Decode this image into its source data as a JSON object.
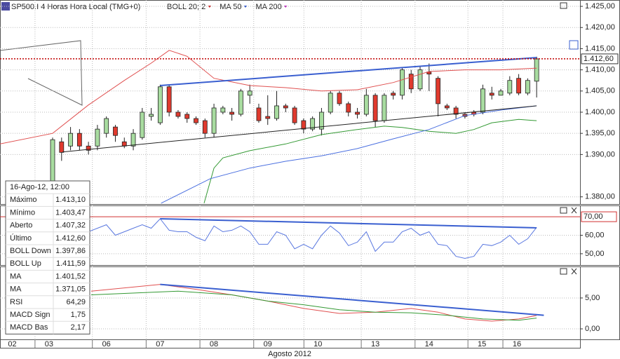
{
  "header": {
    "instrument": "SP500.I 4 Horas Hora Local (TMG+0)",
    "indicators": [
      {
        "label": "BOLL 20; 2",
        "color": "#d03030"
      },
      {
        "label": "MA 50",
        "color": "#3a5fd0"
      },
      {
        "label": "MA 200",
        "color": "#c030c0"
      }
    ]
  },
  "info_box": {
    "title": "16-Ago-12, 12:00",
    "rows": [
      {
        "label": "Máximo",
        "value": "1.413,10",
        "color": "#222222"
      },
      {
        "label": "Mínimo",
        "value": "1.403,47",
        "color": "#222222"
      },
      {
        "label": "Aberto",
        "value": "1.407,32",
        "color": "#222222"
      },
      {
        "label": "Último",
        "value": "1.412,60",
        "color": "#222222"
      },
      {
        "label": "BOLL Down",
        "value": "1.397,86",
        "color": "#2e8b2e"
      },
      {
        "label": "BOLL Up",
        "value": "1.411,59",
        "color": "#d03030"
      },
      {
        "label": "MA",
        "value": "1.401,52",
        "color": "#3a5fd0"
      },
      {
        "label": "MA",
        "value": "1.371,05",
        "color": "#c030c0"
      },
      {
        "label": "RSI",
        "value": "64,29",
        "color": "#222266"
      },
      {
        "label": "MACD Sign",
        "value": "1,75",
        "color": "#2e8b2e"
      },
      {
        "label": "MACD Bas",
        "value": "2,17",
        "color": "#d03030"
      }
    ]
  },
  "chart_data": [
    {
      "type": "candlestick",
      "xlabel": "Agosto 2012",
      "xlim": [
        -5.87,
        58.84
      ],
      "xticks": [
        {
          "value": -4.5,
          "label": "02"
        },
        {
          "value": -0.4,
          "label": "03"
        },
        {
          "value": 6,
          "label": "06"
        },
        {
          "value": 12,
          "label": "07"
        },
        {
          "value": 18,
          "label": "08"
        },
        {
          "value": 24,
          "label": "09"
        },
        {
          "value": 29.6,
          "label": "10"
        },
        {
          "value": 36,
          "label": "13"
        },
        {
          "value": 42,
          "label": "14"
        },
        {
          "value": 47.9,
          "label": "15"
        },
        {
          "value": 51.8,
          "label": "16"
        }
      ],
      "ylim": [
        1378.3,
        1426.5
      ],
      "yticks": [
        {
          "value": 1425,
          "label": "1.425,00"
        },
        {
          "value": 1420,
          "label": "1.420,00"
        },
        {
          "value": 1415,
          "label": "1.415,00"
        },
        {
          "value": 1410,
          "label": "1.410,00"
        },
        {
          "value": 1405,
          "label": "1.405,00"
        },
        {
          "value": 1400,
          "label": "1.400,00"
        },
        {
          "value": 1395,
          "label": "1.395,00"
        },
        {
          "value": 1390,
          "label": "1.390,00"
        },
        {
          "value": 1380,
          "label": "1.380,00"
        }
      ],
      "grid": true,
      "up_color": "#a8dca0",
      "down_color": "#e03a2e",
      "open": [
        1380,
        1393,
        1392,
        1395,
        1392,
        1392,
        1395,
        1396.5,
        1393,
        1392,
        1394,
        1399,
        1397.5,
        1406,
        1400,
        1399.5,
        1398.5,
        1398,
        1395,
        1400,
        1400,
        1399.5,
        1404,
        1401,
        1399,
        1398.5,
        1401.5,
        1401,
        1398,
        1396,
        1396,
        1400,
        1404.5,
        1402,
        1400,
        1399.5,
        1404,
        1398,
        1404.5,
        1404,
        1409,
        1405.5,
        1409.5,
        1408,
        1401.5,
        1401,
        1399.5,
        1400,
        1400,
        1404.5,
        1404,
        1404.5,
        1408,
        1404.5,
        1407.32
      ],
      "high": [
        1394,
        1394,
        1396.5,
        1396,
        1393,
        1397,
        1399,
        1397,
        1394,
        1396,
        1401,
        1401,
        1406.5,
        1406.5,
        1400.5,
        1400,
        1399,
        1398.5,
        1402,
        1401.5,
        1401,
        1405.5,
        1406.5,
        1402,
        1404,
        1405,
        1402,
        1401.5,
        1398.5,
        1399,
        1401,
        1405,
        1405,
        1402.5,
        1401,
        1405.5,
        1404.5,
        1404.5,
        1405,
        1410.5,
        1410,
        1411,
        1411.5,
        1408.5,
        1402,
        1401.5,
        1400,
        1400.5,
        1406.5,
        1406,
        1405.5,
        1408.5,
        1409,
        1408,
        1413.1
      ],
      "low": [
        1379,
        1388.5,
        1391,
        1391,
        1390,
        1391,
        1394,
        1393,
        1391.5,
        1391,
        1393.5,
        1398,
        1397,
        1399,
        1398.5,
        1397.5,
        1397,
        1394,
        1394,
        1399.5,
        1398,
        1399,
        1402,
        1397.5,
        1397,
        1398,
        1400,
        1397,
        1395,
        1395.5,
        1394.5,
        1399.5,
        1401.5,
        1399,
        1398.5,
        1399,
        1396.5,
        1397.5,
        1403,
        1403,
        1404.5,
        1405,
        1405,
        1399,
        1400.5,
        1398.5,
        1398.5,
        1399,
        1399.5,
        1403,
        1404,
        1404,
        1404,
        1404,
        1403.47
      ],
      "close": [
        1393.5,
        1390.5,
        1395,
        1392,
        1391,
        1396,
        1398.5,
        1394.5,
        1392,
        1395,
        1400,
        1399.5,
        1406,
        1400,
        1399,
        1398.5,
        1397.5,
        1395,
        1401,
        1401,
        1399.5,
        1405,
        1405,
        1398,
        1398.5,
        1401.5,
        1401,
        1397.5,
        1396,
        1398.5,
        1400,
        1404.5,
        1402,
        1400,
        1399.5,
        1404,
        1398,
        1404,
        1404,
        1410,
        1405.5,
        1410,
        1409,
        1402,
        1401,
        1399.5,
        1399,
        1399.5,
        1405.5,
        1404,
        1405,
        1407.5,
        1404.5,
        1407.5,
        1412.6
      ],
      "series": [
        {
          "color": "#e05050",
          "x": [
            -5.9,
            0,
            4,
            8,
            11,
            13,
            15,
            18,
            22,
            26,
            30,
            34,
            38,
            42,
            46,
            50,
            54
          ],
          "values": [
            1392.5,
            1395,
            1401.7,
            1407.5,
            1411.6,
            1414.6,
            1413.2,
            1408,
            1406.3,
            1405.8,
            1405,
            1405.3,
            1407,
            1409.6,
            1410,
            1410,
            1410.4
          ]
        },
        {
          "color": "#339933",
          "x": [
            16.9,
            18,
            19,
            22,
            26,
            30,
            34,
            37,
            39,
            42,
            45,
            47,
            49,
            52,
            54
          ],
          "values": [
            1378.5,
            1386.8,
            1389.2,
            1390.9,
            1392.5,
            1394.7,
            1395.9,
            1396.7,
            1396.4,
            1395.5,
            1395,
            1395.9,
            1397.5,
            1398.3,
            1398
          ]
        },
        {
          "color": "#4a6fe0",
          "x": [
            12.1,
            17.6,
            22,
            26,
            30,
            34,
            38,
            42,
            46,
            50,
            54
          ],
          "values": [
            1378.5,
            1384.3,
            1386.8,
            1388.4,
            1389.7,
            1391.4,
            1393.7,
            1395.9,
            1399.2,
            1400.5,
            1401.5
          ]
        }
      ],
      "lines": [
        {
          "color": "#3a5fd0",
          "x": [
            12,
            54
          ],
          "values": [
            1406.3,
            1412.9
          ]
        },
        {
          "color": "#222222",
          "x": [
            1.1,
            54
          ],
          "values": [
            1390.6,
            1401.5
          ]
        }
      ],
      "last_price": {
        "value": 1412.6,
        "label": "1.412,60"
      }
    },
    {
      "type": "line",
      "xlim": [
        -5.87,
        58.84
      ],
      "ylim": [
        43.9,
        76.1
      ],
      "yticks": [
        {
          "value": 60,
          "label": "60,00"
        },
        {
          "value": 50,
          "label": "50,00"
        }
      ],
      "level": {
        "value": 70,
        "label": "70,00",
        "color": "#d03030"
      },
      "series": [
        {
          "color": "#5a78e0",
          "values": [
            null,
            null,
            null,
            null,
            61.9,
            63.8,
            65.7,
            60,
            61.9,
            63.8,
            65.7,
            63.8,
            68.9,
            62.7,
            61.9,
            61.9,
            58.9,
            57,
            65,
            61.9,
            62.7,
            65,
            61.9,
            55.1,
            55.1,
            61.9,
            60,
            52.7,
            55.1,
            52.7,
            60,
            65,
            61.2,
            54.4,
            56.3,
            61.9,
            51.3,
            56.3,
            56.3,
            61.9,
            63.8,
            60,
            61.9,
            55.1,
            54.4,
            48.6,
            47.5,
            48.6,
            55.1,
            54.4,
            56.3,
            60,
            55.1,
            58.1,
            64.29
          ]
        }
      ],
      "lines": [
        {
          "color": "#3a5fd0",
          "x": [
            12,
            54
          ],
          "values": [
            68.9,
            64
          ]
        }
      ]
    },
    {
      "type": "line",
      "xlim": [
        -5.87,
        58.84
      ],
      "ylim": [
        -1.7,
        10.1
      ],
      "yticks": [
        {
          "value": 5,
          "label": "5,00"
        },
        {
          "value": 0,
          "label": "0,00"
        }
      ],
      "series": [
        {
          "color": "#e05050",
          "x": [
            4.3,
            12,
            16,
            20,
            24,
            28,
            32,
            36,
            40,
            43,
            46,
            49,
            52,
            54
          ],
          "values": [
            6.1,
            7.2,
            6.4,
            5.5,
            4.5,
            3.3,
            2.5,
            2.7,
            3.3,
            2.7,
            1.6,
            1.25,
            1.6,
            2.17
          ]
        },
        {
          "color": "#339933",
          "x": [
            4.3,
            14,
            20,
            24,
            28,
            32,
            36,
            40,
            44,
            48,
            52,
            54
          ],
          "values": [
            5.5,
            6.1,
            5.5,
            4.5,
            3.9,
            3.1,
            2.7,
            2.6,
            2.2,
            1.6,
            1.4,
            1.75
          ]
        }
      ],
      "lines": [
        {
          "color": "#3a5fd0",
          "x": [
            12,
            54.8
          ],
          "values": [
            7.2,
            2.2
          ]
        }
      ]
    }
  ]
}
